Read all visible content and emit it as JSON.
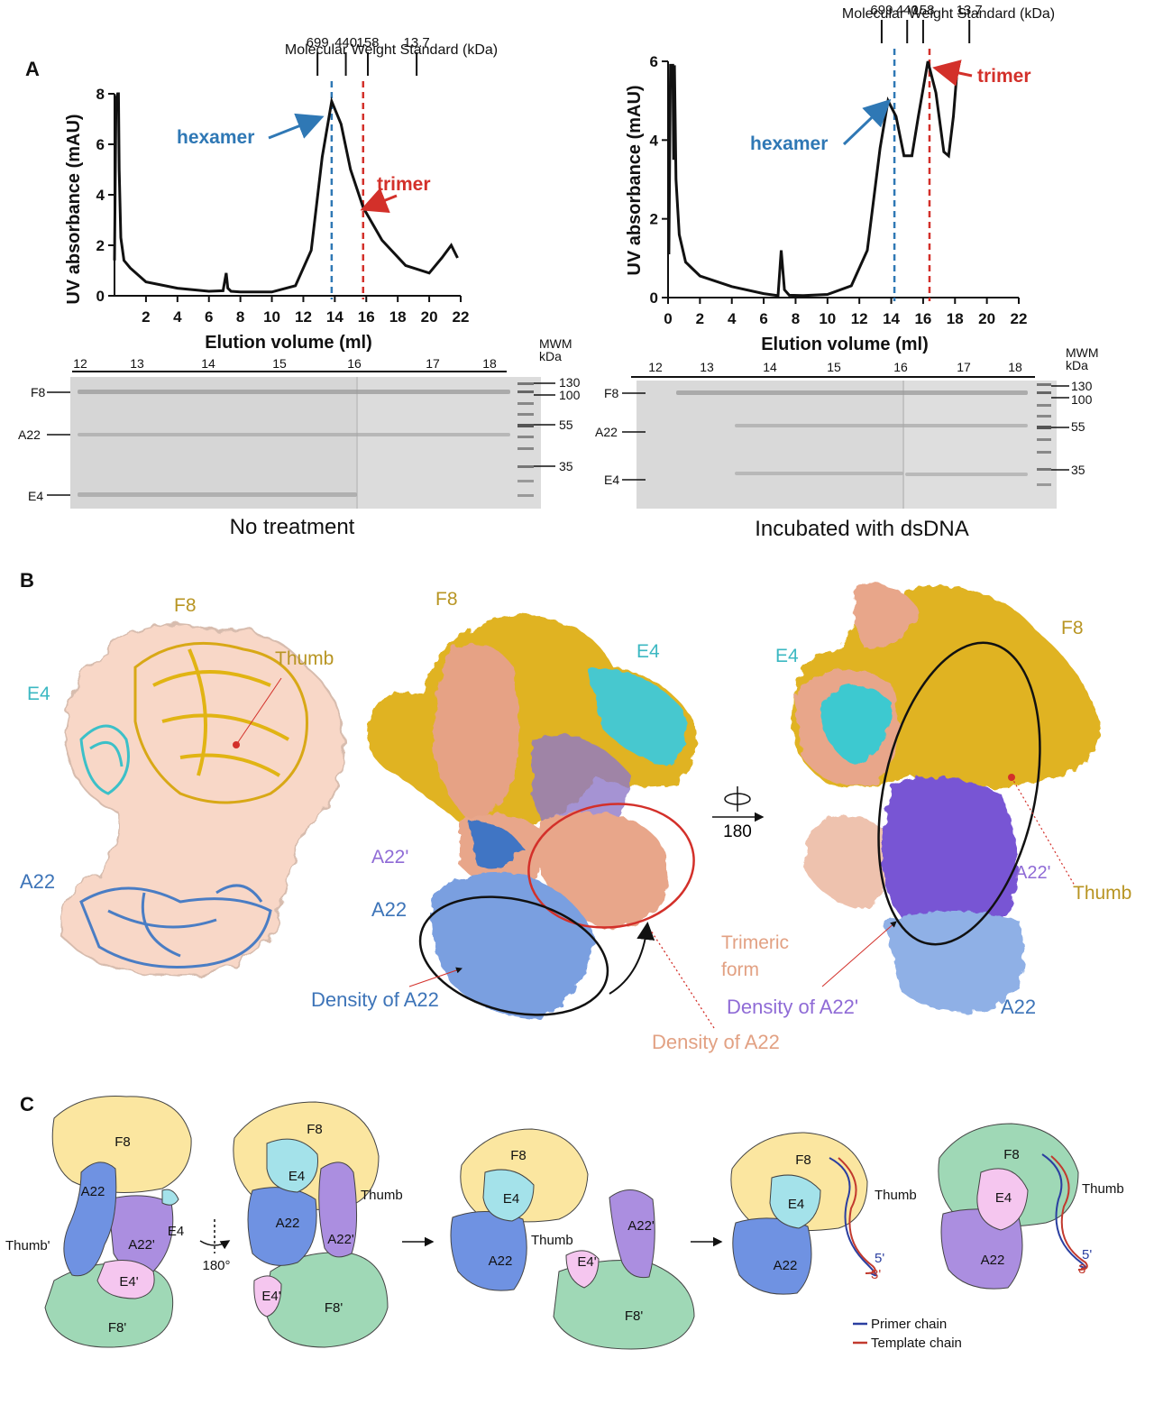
{
  "panel_labels": {
    "a": "A",
    "b": "B",
    "c": "C"
  },
  "colors": {
    "hexamer": "#2f78b5",
    "trimer": "#d3302a",
    "F8": "#c7a020",
    "E4": "#3cc0c8",
    "A22": "#3d74b8",
    "A22p": "#8a63d4",
    "salmon": "#e2a98a",
    "schem_F8": "#fbe6a0",
    "schem_E4": "#a4e2ea",
    "schem_A22": "#6f92e2",
    "schem_A22p": "#ab8ee0",
    "schem_F8p": "#9fd8b6",
    "schem_E4p": "#f5c6ef",
    "primer": "#2b3fa0",
    "template": "#c23a2e"
  },
  "chart_data": [
    {
      "type": "line",
      "title": "",
      "xlabel": "Elution volume (ml)",
      "ylabel": "UV absorbance (mAU)",
      "xlim": [
        0,
        22
      ],
      "ylim": [
        0,
        8
      ],
      "xticks": [
        2,
        4,
        6,
        8,
        10,
        12,
        14,
        16,
        18,
        20,
        22
      ],
      "yticks": [
        0,
        2,
        4,
        6,
        8
      ],
      "series": [
        {
          "x": [
            0,
            0.1,
            0.2,
            0.25,
            0.3,
            0.4,
            0.6,
            1,
            2,
            4,
            6,
            6.9,
            7.1,
            7.2,
            7.4,
            8,
            10,
            11.5,
            12.5,
            13.2,
            13.8,
            14.4,
            15,
            15.8,
            17,
            18.5,
            20,
            20.8,
            21.4,
            21.8
          ],
          "y": [
            1.4,
            7.8,
            8.0,
            8.0,
            5.0,
            2.3,
            1.4,
            1.1,
            0.55,
            0.3,
            0.18,
            0.2,
            0.9,
            0.3,
            0.18,
            0.15,
            0.15,
            0.4,
            1.8,
            5.5,
            7.7,
            6.8,
            5.0,
            3.5,
            2.2,
            1.2,
            0.9,
            1.5,
            2.0,
            1.5
          ]
        }
      ],
      "markers": {
        "title": "Molecular Weight Standard (kDa)",
        "labels": [
          "699",
          "440",
          "158",
          "13.7"
        ],
        "positions": [
          12.9,
          14.7,
          16.1,
          19.2
        ]
      },
      "lines": [
        {
          "label": "hexamer",
          "x": 13.8,
          "point_y": 7.7
        },
        {
          "label": "trimer",
          "x": 15.8,
          "point_y": 3.4
        }
      ]
    },
    {
      "type": "line",
      "title": "",
      "xlabel": "Elution volume (ml)",
      "ylabel": "UV absorbance (mAU)",
      "xlim": [
        0,
        22
      ],
      "ylim": [
        0,
        6
      ],
      "xticks": [
        0,
        2,
        4,
        6,
        8,
        10,
        12,
        14,
        16,
        18,
        20,
        22
      ],
      "yticks": [
        0,
        2,
        4,
        6
      ],
      "series": [
        {
          "x": [
            0.05,
            0.15,
            0.25,
            0.3,
            0.35,
            0.4,
            0.5,
            0.7,
            1.1,
            2,
            4,
            6,
            6.9,
            7.1,
            7.3,
            7.6,
            8.5,
            10,
            11.5,
            12.5,
            13.3,
            13.8,
            14.3,
            14.8,
            15.3,
            15.7,
            16.3,
            16.8,
            17.3,
            17.6,
            17.9,
            18.1
          ],
          "y": [
            1.1,
            5.9,
            5.9,
            5.9,
            3.5,
            5.9,
            3.0,
            1.6,
            0.9,
            0.55,
            0.28,
            0.1,
            0.05,
            1.2,
            0.2,
            0.06,
            0.05,
            0.08,
            0.3,
            1.2,
            3.8,
            5.0,
            4.6,
            3.6,
            3.6,
            4.6,
            6.0,
            5.2,
            3.7,
            3.6,
            4.6,
            5.6
          ]
        }
      ],
      "markers": {
        "title": "Molecular Weight Standard (kDa)",
        "labels": [
          "699",
          "440",
          "158",
          "13.7"
        ],
        "positions": [
          13.4,
          15.0,
          16.0,
          18.9
        ]
      },
      "lines": [
        {
          "label": "hexamer",
          "x": 14.2,
          "point_y": 5.0
        },
        {
          "label": "trimer",
          "x": 16.4,
          "point_y": 6.0
        }
      ]
    }
  ],
  "gels": [
    {
      "fractions": [
        "12",
        "13",
        "14",
        "15",
        "16",
        "17",
        "18"
      ],
      "mwm_title": "MWM\nkDa",
      "mwm": [
        "130",
        "100",
        "55",
        "35"
      ],
      "bands": [
        "F8",
        "A22",
        "E4"
      ],
      "caption": "No treatment"
    },
    {
      "fractions": [
        "12",
        "13",
        "14",
        "15",
        "16",
        "17",
        "18"
      ],
      "mwm_title": "MWM\nkDa",
      "mwm": [
        "130",
        "100",
        "55",
        "35"
      ],
      "bands": [
        "F8",
        "A22",
        "E4"
      ],
      "caption": "Incubated with dsDNA"
    }
  ],
  "panel_b": {
    "left": {
      "F8": "F8",
      "E4": "E4",
      "A22": "A22",
      "thumb": "Thumb"
    },
    "middle": {
      "F8": "F8",
      "E4": "E4",
      "A22p": "A22'",
      "A22": "A22",
      "density_a22": "Density of A22",
      "density_a22_salmon": "Density of A22"
    },
    "rotation": "180",
    "right": {
      "F8": "F8",
      "E4": "E4",
      "A22p": "A22'",
      "thumb": "Thumb",
      "trimeric_1": "Trimeric",
      "trimeric_2": "form",
      "density_a22p": "Density of A22'",
      "A22": "A22"
    }
  },
  "panel_c": {
    "s1": {
      "F8": "F8",
      "A22": "A22",
      "A22p": "A22'",
      "E4": "E4",
      "E4p": "E4'",
      "F8p": "F8'",
      "thumbp": "Thumb'"
    },
    "rot": "180°",
    "s2": {
      "F8": "F8",
      "E4": "E4",
      "A22": "A22",
      "A22p": "A22'",
      "E4p": "E4'",
      "F8p": "F8'",
      "thumb": "Thumb"
    },
    "s3": {
      "F8": "F8",
      "E4": "E4",
      "A22": "A22",
      "thumb": "Thumb",
      "A22p": "A22'",
      "E4p": "E4'",
      "F8p": "F8'"
    },
    "s4": {
      "F8": "F8",
      "E4": "E4",
      "A22": "A22",
      "thumb": "Thumb",
      "p5": "5'",
      "p3": "3'"
    },
    "s5": {
      "F8": "F8",
      "E4": "E4",
      "A22": "A22",
      "thumb": "Thumb",
      "p5": "5'",
      "p3": "3'"
    },
    "legend": {
      "primer": "Primer chain",
      "template": "Template chain"
    }
  }
}
